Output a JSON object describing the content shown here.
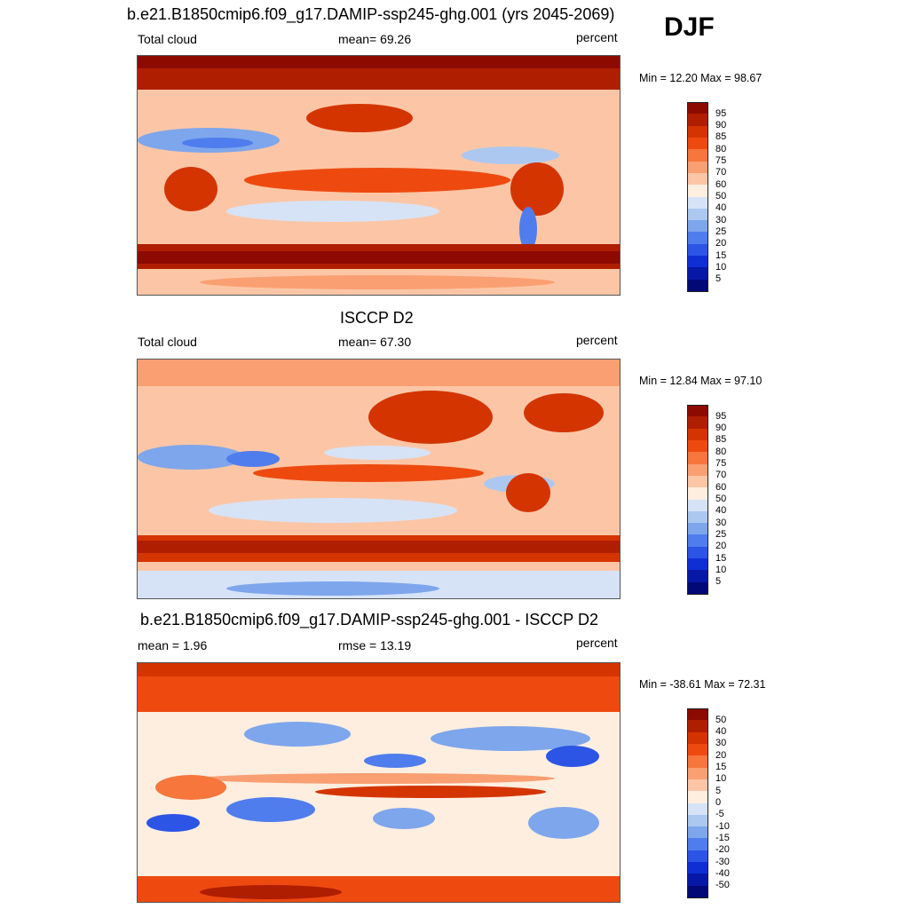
{
  "season": "DJF",
  "panels": [
    {
      "title": "b.e21.B1850cmip6.f09_g17.DAMIP-ssp245-ghg.001 (yrs 2045-2069)",
      "left_label": "Total cloud",
      "center_label": "mean=  69.26",
      "right_label": "percent",
      "minmax": "Min =  12.20 Max =  98.67",
      "levels": [
        "95",
        "90",
        "85",
        "80",
        "75",
        "70",
        "60",
        "50",
        "40",
        "30",
        "25",
        "20",
        "15",
        "10",
        "5"
      ],
      "colors": [
        "#8c0a00",
        "#b01e00",
        "#d43500",
        "#ee4a10",
        "#f6763c",
        "#fa9f72",
        "#fcc6a6",
        "#fdeee0",
        "#d6e3f7",
        "#adc8f0",
        "#7ea6ec",
        "#507ded",
        "#2c55e6",
        "#0f2fd5",
        "#0818a6",
        "#020876"
      ]
    },
    {
      "title": "ISCCP D2",
      "left_label": "Total cloud",
      "center_label": "mean=  67.30",
      "right_label": "percent",
      "minmax": "Min =  12.84 Max =  97.10",
      "levels": [
        "95",
        "90",
        "85",
        "80",
        "75",
        "70",
        "60",
        "50",
        "40",
        "30",
        "25",
        "20",
        "15",
        "10",
        "5"
      ],
      "colors": [
        "#8c0a00",
        "#b01e00",
        "#d43500",
        "#ee4a10",
        "#f6763c",
        "#fa9f72",
        "#fcc6a6",
        "#fdeee0",
        "#d6e3f7",
        "#adc8f0",
        "#7ea6ec",
        "#507ded",
        "#2c55e6",
        "#0f2fd5",
        "#0818a6",
        "#020876"
      ]
    },
    {
      "title": "b.e21.B1850cmip6.f09_g17.DAMIP-ssp245-ghg.001 - ISCCP D2",
      "left_label": "mean =   1.96",
      "center_label": "rmse =  13.19",
      "right_label": "percent",
      "minmax": "Min = -38.61 Max =  72.31",
      "levels": [
        "50",
        "40",
        "30",
        "20",
        "15",
        "10",
        "5",
        "0",
        "-5",
        "-10",
        "-15",
        "-20",
        "-30",
        "-40",
        "-50"
      ],
      "colors": [
        "#8c0a00",
        "#b01e00",
        "#d43500",
        "#ee4a10",
        "#f6763c",
        "#fa9f72",
        "#fcc6a6",
        "#fdeee0",
        "#d6e3f7",
        "#adc8f0",
        "#7ea6ec",
        "#507ded",
        "#2c55e6",
        "#0f2fd5",
        "#0818a6",
        "#020876"
      ]
    }
  ]
}
